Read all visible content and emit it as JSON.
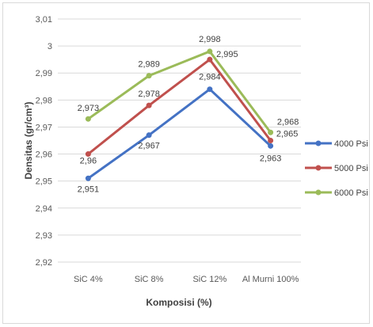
{
  "chart_data": {
    "type": "line",
    "title": "",
    "xlabel": "Komposisi (%)",
    "ylabel": "Densitas (gr/cm³)",
    "categories": [
      "SiC 4%",
      "SiC 8%",
      "SiC 12%",
      "Al Murni 100%"
    ],
    "ylim": [
      2.92,
      3.01
    ],
    "yticks": [
      2.92,
      2.93,
      2.94,
      2.95,
      2.96,
      2.97,
      2.98,
      2.99,
      3.0,
      3.01
    ],
    "ytick_labels": [
      "2,92",
      "2,93",
      "2,94",
      "2,95",
      "2,96",
      "2,97",
      "2,98",
      "2,99",
      "3",
      "3,01"
    ],
    "grid": true,
    "legend_position": "right",
    "series": [
      {
        "name": "4000 Psi",
        "color": "#4472c4",
        "values": [
          2.951,
          2.967,
          2.984,
          2.963
        ],
        "labels": [
          "2,951",
          "2,967",
          "2,984",
          "2,963"
        ]
      },
      {
        "name": "5000 Psi",
        "color": "#c0504d",
        "values": [
          2.96,
          2.978,
          2.995,
          2.965
        ],
        "labels": [
          "2,96",
          "2,978",
          "2,995",
          "2,965"
        ]
      },
      {
        "name": "6000 Psi",
        "color": "#9bbb59",
        "values": [
          2.973,
          2.989,
          2.998,
          2.968
        ],
        "labels": [
          "2,973",
          "2,989",
          "2,998",
          "2,968"
        ]
      }
    ]
  }
}
